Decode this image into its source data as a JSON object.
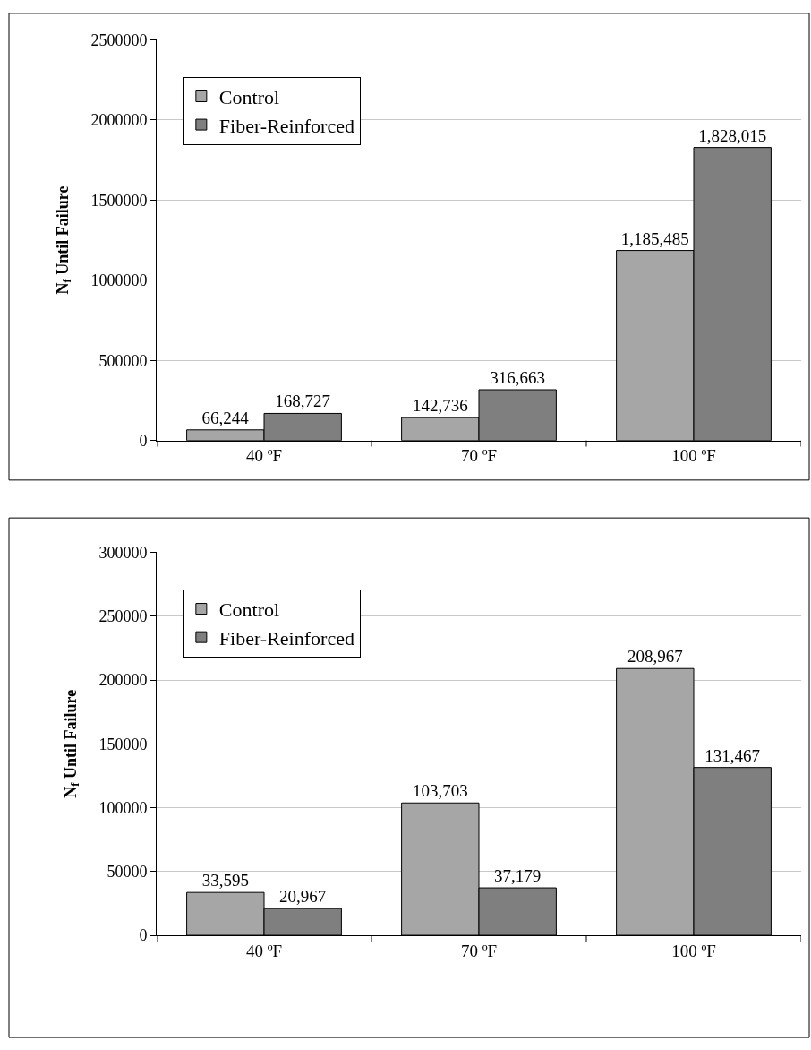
{
  "chart_data": [
    {
      "type": "bar",
      "ylabel": "N$_{f}$ Until Failure",
      "categories": [
        "40 ºF",
        "70 ºF",
        "100 ºF"
      ],
      "series": [
        {
          "name": "Control",
          "color": "#a6a6a6",
          "values": [
            66244,
            142736,
            1185485
          ],
          "value_labels": [
            "66,244",
            "142,736",
            "1,185,485"
          ]
        },
        {
          "name": "Fiber-Reinforced",
          "color": "#7f7f7f",
          "values": [
            168727,
            316663,
            1828015
          ],
          "value_labels": [
            "168,727",
            "316,663",
            "1,828,015"
          ]
        }
      ],
      "ylim": [
        0,
        2500000
      ],
      "yticks": [
        0,
        500000,
        1000000,
        1500000,
        2000000,
        2500000
      ],
      "grid": "y",
      "legend": "top left"
    },
    {
      "type": "bar",
      "ylabel": "N$_{f}$ Until Failure",
      "categories": [
        "40 ºF",
        "70 ºF",
        "100 ºF"
      ],
      "series": [
        {
          "name": "Control",
          "color": "#a6a6a6",
          "values": [
            33595,
            103703,
            208967
          ],
          "value_labels": [
            "33,595",
            "103,703",
            "208,967"
          ]
        },
        {
          "name": "Fiber-Reinforced",
          "color": "#7f7f7f",
          "values": [
            20967,
            37179,
            131467
          ],
          "value_labels": [
            "20,967",
            "37,179",
            "131,467"
          ]
        }
      ],
      "ylim": [
        0,
        300000
      ],
      "yticks": [
        0,
        50000,
        100000,
        150000,
        200000,
        250000,
        300000
      ],
      "grid": "y",
      "legend": "top left"
    }
  ]
}
